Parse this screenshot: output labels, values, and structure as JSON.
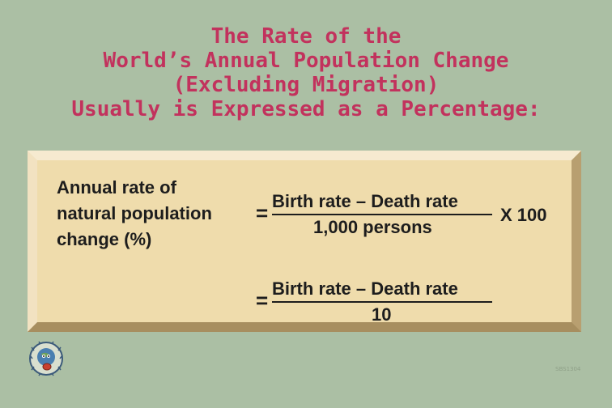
{
  "title": {
    "lines": [
      "The Rate of the",
      "World’s Annual Population Change",
      "(Excluding Migration)",
      "Usually is Expressed as a Percentage:"
    ]
  },
  "formula": {
    "lhs_lines": [
      "Annual rate of",
      "natural population",
      "change (%)"
    ],
    "equals": "=",
    "numerator": "Birth rate – Death rate",
    "denominator_1": "1,000 persons",
    "multiplier": "X 100",
    "denominator_2": "10"
  },
  "footer": {
    "slide_id": "SBS1304",
    "logo_icon": "globe-mascot-logo-icon"
  }
}
